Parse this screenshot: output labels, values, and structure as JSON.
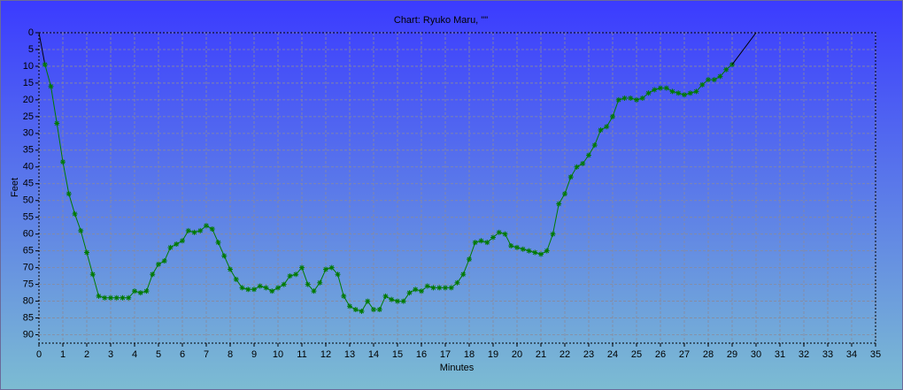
{
  "chart_data": {
    "type": "line",
    "title": "Chart: Ryuko Maru, \"\"",
    "xlabel": "Minutes",
    "ylabel": "Feet",
    "xlim": [
      0,
      35
    ],
    "xticks": [
      0,
      1,
      2,
      3,
      4,
      5,
      6,
      7,
      8,
      9,
      10,
      11,
      12,
      13,
      14,
      15,
      16,
      17,
      18,
      19,
      20,
      21,
      22,
      23,
      24,
      25,
      26,
      27,
      28,
      29,
      30,
      31,
      32,
      33,
      34,
      35
    ],
    "ylim": [
      0,
      92.5
    ],
    "yticks": [
      0,
      5,
      10,
      15,
      20,
      25,
      30,
      35,
      40,
      45,
      50,
      55,
      60,
      65,
      70,
      75,
      80,
      85,
      90
    ],
    "y_inverted": true,
    "grid": true,
    "series": [
      {
        "color": "#000000",
        "markers": false,
        "x": [
          0,
          0.25
        ],
        "values": [
          0,
          9.5
        ]
      },
      {
        "color": "#007a00",
        "markers": true,
        "x": [
          0.25,
          0.5,
          0.75,
          1,
          1.25,
          1.5,
          1.75,
          2,
          2.25,
          2.5,
          2.75,
          3,
          3.25,
          3.5,
          3.75,
          4,
          4.25,
          4.5,
          4.75,
          5,
          5.25,
          5.5,
          5.75,
          6,
          6.25,
          6.5,
          6.75,
          7,
          7.25,
          7.5,
          7.75,
          8,
          8.25,
          8.5,
          8.75,
          9,
          9.25,
          9.5,
          9.75,
          10,
          10.25,
          10.5,
          10.75,
          11,
          11.25,
          11.5,
          11.75,
          12,
          12.25,
          12.5,
          12.75,
          13,
          13.25,
          13.5,
          13.75,
          14,
          14.25,
          14.5,
          14.75,
          15,
          15.25,
          15.5,
          15.75,
          16,
          16.25,
          16.5,
          16.75,
          17,
          17.25,
          17.5,
          17.75,
          18,
          18.25,
          18.5,
          18.75,
          19,
          19.25,
          19.5,
          19.75,
          20,
          20.25,
          20.5,
          20.75,
          21,
          21.25,
          21.5,
          21.75,
          22,
          22.25,
          22.5,
          22.75,
          23,
          23.25,
          23.5,
          23.75,
          24,
          24.25,
          24.5,
          24.75,
          25,
          25.25,
          25.5,
          25.75,
          26,
          26.25,
          26.5,
          26.75,
          27,
          27.25,
          27.5,
          27.75,
          28,
          28.25,
          28.5,
          28.75,
          29
        ],
        "values": [
          9.5,
          16,
          27,
          38.5,
          48,
          54,
          59,
          65.5,
          72,
          78.5,
          79,
          79,
          79,
          79,
          79,
          77,
          77.5,
          77,
          72,
          69,
          68,
          64,
          63,
          62,
          59,
          59.5,
          59,
          57.5,
          58.5,
          62.5,
          66.5,
          70.5,
          73.5,
          76,
          76.5,
          76.5,
          75.5,
          76,
          77,
          76,
          75,
          72.5,
          72,
          70,
          75,
          77,
          74.5,
          70.5,
          70,
          72,
          78.5,
          81.5,
          82.5,
          83,
          80,
          82.5,
          82.5,
          78.5,
          79.5,
          80,
          80,
          77.5,
          76.5,
          77,
          75.5,
          76,
          76,
          76,
          76,
          74.5,
          72,
          67.5,
          62.5,
          62,
          62.5,
          61,
          59.5,
          60,
          63.5,
          64,
          64.5,
          65,
          65.5,
          66,
          65,
          60,
          51,
          48,
          43,
          40,
          39,
          36.5,
          33.5,
          29,
          28,
          25,
          20,
          19.5,
          19.5,
          20,
          19.5,
          18,
          17,
          16.5,
          16.5,
          17.5,
          18,
          18.5,
          18,
          17.5,
          15.5,
          14,
          14,
          13,
          11,
          9.5
        ]
      },
      {
        "color": "#000000",
        "markers": false,
        "x": [
          29,
          30
        ],
        "values": [
          9.5,
          0
        ]
      }
    ]
  }
}
